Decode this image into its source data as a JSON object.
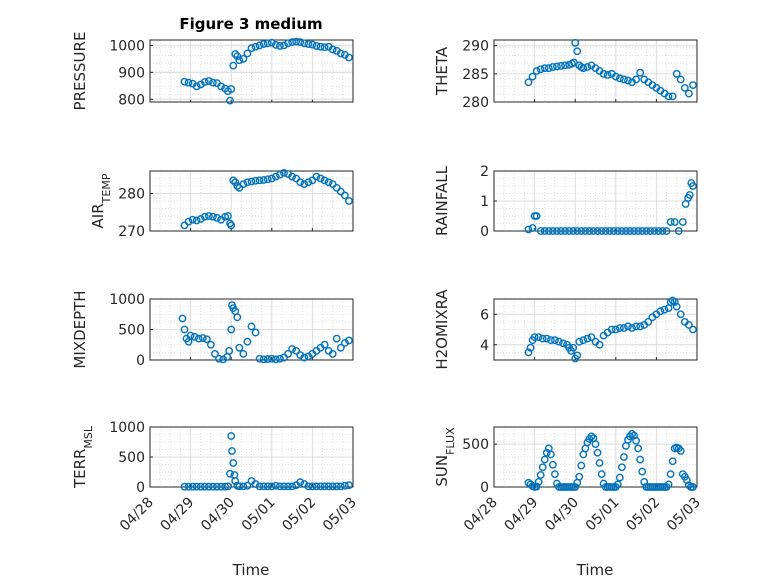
{
  "figure": {
    "title": "Figure 3 medium",
    "xlabel": "Time",
    "marker_color": "#0072BD"
  },
  "chart_data": [
    {
      "type": "scatter",
      "ylabel": "PRESSURE",
      "ylim": [
        790,
        1020
      ],
      "yticks": [
        800,
        900,
        1000
      ],
      "xlim": [
        0,
        5
      ],
      "xticks": [
        "04/28",
        "04/29",
        "04/30",
        "05/01",
        "05/02",
        "05/03"
      ],
      "xtick_labels_visible": false,
      "grid": true,
      "minor_grid": true,
      "x": [
        0.85,
        0.95,
        1.05,
        1.15,
        1.25,
        1.35,
        1.45,
        1.55,
        1.65,
        1.75,
        1.85,
        1.92,
        1.97,
        2.0,
        2.05,
        2.1,
        2.15,
        2.2,
        2.3,
        2.4,
        2.5,
        2.6,
        2.7,
        2.8,
        2.9,
        3.0,
        3.1,
        3.2,
        3.3,
        3.4,
        3.5,
        3.6,
        3.7,
        3.8,
        3.9,
        4.0,
        4.1,
        4.2,
        4.3,
        4.4,
        4.5,
        4.6,
        4.7,
        4.8,
        4.9
      ],
      "y": [
        865,
        862,
        858,
        848,
        855,
        864,
        868,
        862,
        860,
        848,
        840,
        830,
        795,
        838,
        925,
        968,
        960,
        945,
        950,
        970,
        990,
        995,
        1000,
        1005,
        1008,
        1010,
        1002,
        998,
        1000,
        1008,
        1012,
        1014,
        1012,
        1008,
        1005,
        1003,
        998,
        995,
        993,
        995,
        985,
        980,
        970,
        965,
        955
      ]
    },
    {
      "type": "scatter",
      "ylabel": "THETA",
      "ylim": [
        280,
        291
      ],
      "yticks": [
        280,
        285,
        290
      ],
      "xlim": [
        0,
        5
      ],
      "xticks": [
        "04/28",
        "04/29",
        "04/30",
        "05/01",
        "05/02",
        "05/03"
      ],
      "xtick_labels_visible": false,
      "grid": true,
      "minor_grid": true,
      "x": [
        0.85,
        0.95,
        1.05,
        1.15,
        1.25,
        1.35,
        1.45,
        1.55,
        1.65,
        1.75,
        1.85,
        1.92,
        1.97,
        2.0,
        2.05,
        2.1,
        2.15,
        2.2,
        2.3,
        2.4,
        2.5,
        2.6,
        2.7,
        2.8,
        2.9,
        3.0,
        3.1,
        3.2,
        3.3,
        3.4,
        3.5,
        3.6,
        3.7,
        3.8,
        3.9,
        4.0,
        4.1,
        4.2,
        4.3,
        4.4,
        4.5,
        4.6,
        4.7,
        4.8,
        4.9
      ],
      "y": [
        283.5,
        284.5,
        285.5,
        285.8,
        286.0,
        286.0,
        286.2,
        286.3,
        286.4,
        286.5,
        286.6,
        286.8,
        287.0,
        290.5,
        289.0,
        286.5,
        286.2,
        286.0,
        286.2,
        286.5,
        286.0,
        285.5,
        285.0,
        284.8,
        285.0,
        284.5,
        284.2,
        284.0,
        283.8,
        283.5,
        284.0,
        285.2,
        284.0,
        283.5,
        283.0,
        282.5,
        282.0,
        281.5,
        281.0,
        281.0,
        285.0,
        284.0,
        282.5,
        281.5,
        283.0
      ]
    },
    {
      "type": "scatter",
      "ylabel": "AIR_TEMP",
      "ylim": [
        270,
        286
      ],
      "yticks": [
        270,
        280
      ],
      "xlim": [
        0,
        5
      ],
      "xticks": [
        "04/28",
        "04/29",
        "04/30",
        "05/01",
        "05/02",
        "05/03"
      ],
      "xtick_labels_visible": false,
      "grid": true,
      "minor_grid": true,
      "x": [
        0.85,
        0.95,
        1.05,
        1.15,
        1.25,
        1.35,
        1.45,
        1.55,
        1.65,
        1.75,
        1.85,
        1.92,
        1.97,
        2.0,
        2.05,
        2.1,
        2.15,
        2.2,
        2.3,
        2.4,
        2.5,
        2.6,
        2.7,
        2.8,
        2.9,
        3.0,
        3.1,
        3.2,
        3.3,
        3.4,
        3.5,
        3.6,
        3.7,
        3.8,
        3.9,
        4.0,
        4.1,
        4.2,
        4.3,
        4.4,
        4.5,
        4.6,
        4.7,
        4.8,
        4.9
      ],
      "y": [
        271.5,
        272.5,
        273.0,
        272.8,
        273.2,
        273.8,
        274.0,
        273.8,
        273.5,
        273.0,
        273.8,
        274.0,
        272.0,
        271.5,
        283.5,
        283.0,
        282.0,
        281.5,
        282.5,
        283.0,
        283.2,
        283.4,
        283.5,
        283.6,
        283.8,
        284.0,
        284.5,
        285.0,
        285.5,
        285.2,
        284.5,
        284.0,
        283.0,
        282.5,
        283.0,
        283.5,
        284.5,
        284.0,
        283.5,
        283.0,
        282.5,
        281.5,
        280.5,
        279.5,
        278.0
      ]
    },
    {
      "type": "scatter",
      "ylabel": "RAINFALL",
      "ylim": [
        0,
        2
      ],
      "yticks": [
        0,
        1,
        2
      ],
      "xlim": [
        0,
        5
      ],
      "xticks": [
        "04/28",
        "04/29",
        "04/30",
        "05/01",
        "05/02",
        "05/03"
      ],
      "xtick_labels_visible": false,
      "grid": true,
      "minor_grid": true,
      "x": [
        0.85,
        0.95,
        1.0,
        1.05,
        1.15,
        1.25,
        1.35,
        1.45,
        1.55,
        1.65,
        1.75,
        1.85,
        1.95,
        2.05,
        2.15,
        2.25,
        2.35,
        2.45,
        2.55,
        2.65,
        2.75,
        2.85,
        2.95,
        3.05,
        3.15,
        3.25,
        3.35,
        3.45,
        3.55,
        3.65,
        3.75,
        3.85,
        3.95,
        4.05,
        4.15,
        4.25,
        4.35,
        4.45,
        4.55,
        4.65,
        4.72,
        4.78,
        4.82,
        4.86,
        4.9
      ],
      "y": [
        0.05,
        0.1,
        0.5,
        0.5,
        0,
        0,
        0,
        0,
        0,
        0,
        0,
        0,
        0,
        0,
        0,
        0,
        0,
        0,
        0,
        0,
        0,
        0,
        0,
        0,
        0,
        0,
        0,
        0,
        0,
        0,
        0,
        0,
        0,
        0,
        0,
        0,
        0.3,
        0.3,
        0,
        0.3,
        0.9,
        1.1,
        1.2,
        1.6,
        1.5
      ]
    },
    {
      "type": "scatter",
      "ylabel": "MIXDEPTH",
      "ylim": [
        0,
        1000
      ],
      "yticks": [
        0,
        500,
        1000
      ],
      "xlim": [
        0,
        5
      ],
      "xticks": [
        "04/28",
        "04/29",
        "04/30",
        "05/01",
        "05/02",
        "05/03"
      ],
      "xtick_labels_visible": false,
      "grid": true,
      "minor_grid": true,
      "x": [
        0.8,
        0.85,
        0.9,
        0.95,
        1.0,
        1.1,
        1.2,
        1.3,
        1.4,
        1.5,
        1.6,
        1.7,
        1.8,
        1.9,
        1.95,
        2.0,
        2.02,
        2.05,
        2.1,
        2.15,
        2.2,
        2.3,
        2.4,
        2.5,
        2.6,
        2.7,
        2.8,
        2.9,
        3.0,
        3.1,
        3.2,
        3.3,
        3.4,
        3.5,
        3.6,
        3.7,
        3.8,
        3.9,
        4.0,
        4.1,
        4.2,
        4.3,
        4.4,
        4.5,
        4.6,
        4.7,
        4.8,
        4.9
      ],
      "y": [
        680,
        500,
        350,
        300,
        400,
        380,
        350,
        360,
        340,
        250,
        100,
        20,
        10,
        50,
        150,
        500,
        900,
        850,
        800,
        700,
        200,
        100,
        300,
        550,
        450,
        20,
        10,
        15,
        20,
        10,
        20,
        40,
        100,
        180,
        150,
        80,
        40,
        60,
        100,
        150,
        200,
        250,
        150,
        100,
        350,
        200,
        280,
        320
      ]
    },
    {
      "type": "scatter",
      "ylabel": "H2OMIXRA",
      "ylim": [
        3,
        7
      ],
      "yticks": [
        4,
        6
      ],
      "xlim": [
        0,
        5
      ],
      "xticks": [
        "04/28",
        "04/29",
        "04/30",
        "05/01",
        "05/02",
        "05/03"
      ],
      "xtick_labels_visible": false,
      "grid": true,
      "minor_grid": true,
      "x": [
        0.85,
        0.9,
        0.95,
        1.0,
        1.1,
        1.2,
        1.3,
        1.4,
        1.5,
        1.6,
        1.7,
        1.8,
        1.85,
        1.9,
        1.95,
        2.0,
        2.05,
        2.1,
        2.2,
        2.3,
        2.4,
        2.5,
        2.6,
        2.7,
        2.8,
        2.9,
        3.0,
        3.1,
        3.2,
        3.3,
        3.4,
        3.5,
        3.6,
        3.7,
        3.8,
        3.9,
        4.0,
        4.1,
        4.2,
        4.3,
        4.35,
        4.4,
        4.45,
        4.5,
        4.6,
        4.7,
        4.8,
        4.9
      ],
      "y": [
        3.5,
        3.8,
        4.3,
        4.5,
        4.5,
        4.4,
        4.4,
        4.3,
        4.3,
        4.2,
        4.1,
        4.0,
        3.8,
        3.6,
        3.8,
        3.1,
        3.3,
        4.2,
        4.3,
        4.4,
        4.5,
        4.2,
        4.0,
        4.6,
        4.8,
        5.0,
        5.0,
        5.1,
        5.1,
        5.2,
        5.1,
        5.2,
        5.2,
        5.3,
        5.5,
        5.8,
        6.0,
        6.2,
        6.3,
        6.4,
        6.8,
        6.9,
        6.8,
        6.5,
        6.0,
        5.5,
        5.3,
        5.0
      ]
    },
    {
      "type": "scatter",
      "ylabel": "TERR_MSL",
      "ylim": [
        0,
        1000
      ],
      "yticks": [
        0,
        500,
        1000
      ],
      "xlim": [
        0,
        5
      ],
      "xticks": [
        "04/28",
        "04/29",
        "04/30",
        "05/01",
        "05/02",
        "05/03"
      ],
      "xtick_labels_visible": true,
      "grid": true,
      "minor_grid": true,
      "x": [
        0.85,
        0.95,
        1.05,
        1.15,
        1.25,
        1.35,
        1.45,
        1.55,
        1.65,
        1.75,
        1.85,
        1.92,
        1.97,
        2.0,
        2.02,
        2.05,
        2.08,
        2.1,
        2.15,
        2.2,
        2.3,
        2.4,
        2.5,
        2.6,
        2.7,
        2.8,
        2.9,
        3.0,
        3.1,
        3.2,
        3.3,
        3.4,
        3.5,
        3.6,
        3.7,
        3.8,
        3.9,
        4.0,
        4.1,
        4.2,
        4.3,
        4.4,
        4.5,
        4.6,
        4.7,
        4.8,
        4.9
      ],
      "y": [
        5,
        5,
        5,
        5,
        5,
        5,
        5,
        5,
        5,
        5,
        5,
        10,
        220,
        850,
        600,
        400,
        200,
        100,
        20,
        10,
        10,
        20,
        100,
        50,
        10,
        10,
        10,
        10,
        20,
        10,
        10,
        10,
        10,
        30,
        80,
        50,
        10,
        10,
        10,
        10,
        10,
        10,
        10,
        10,
        10,
        20,
        30
      ]
    },
    {
      "type": "scatter",
      "ylabel": "SUN_FLUX",
      "ylim": [
        0,
        700
      ],
      "yticks": [
        0,
        500
      ],
      "xlim": [
        0,
        5
      ],
      "xticks": [
        "04/28",
        "04/29",
        "04/30",
        "05/01",
        "05/02",
        "05/03"
      ],
      "xtick_labels_visible": true,
      "grid": true,
      "minor_grid": true,
      "x": [
        0.85,
        0.9,
        0.95,
        1.0,
        1.05,
        1.1,
        1.15,
        1.2,
        1.25,
        1.3,
        1.35,
        1.4,
        1.45,
        1.5,
        1.55,
        1.6,
        1.65,
        1.7,
        1.75,
        1.8,
        1.85,
        1.9,
        1.95,
        2.0,
        2.05,
        2.1,
        2.15,
        2.2,
        2.25,
        2.3,
        2.35,
        2.4,
        2.45,
        2.5,
        2.55,
        2.6,
        2.65,
        2.7,
        2.75,
        2.8,
        2.85,
        2.9,
        2.95,
        3.0,
        3.05,
        3.1,
        3.15,
        3.2,
        3.25,
        3.3,
        3.35,
        3.4,
        3.45,
        3.5,
        3.55,
        3.6,
        3.65,
        3.7,
        3.75,
        3.8,
        3.85,
        3.9,
        3.95,
        4.0,
        4.05,
        4.1,
        4.15,
        4.2,
        4.25,
        4.3,
        4.35,
        4.4,
        4.45,
        4.5,
        4.55,
        4.6,
        4.65,
        4.7,
        4.75,
        4.8,
        4.85,
        4.9
      ],
      "y": [
        50,
        30,
        10,
        0,
        5,
        60,
        140,
        230,
        320,
        400,
        450,
        380,
        260,
        150,
        40,
        0,
        0,
        0,
        0,
        0,
        0,
        0,
        0,
        0,
        50,
        120,
        250,
        380,
        450,
        520,
        560,
        590,
        570,
        500,
        400,
        280,
        150,
        40,
        0,
        0,
        0,
        0,
        0,
        0,
        30,
        110,
        230,
        350,
        480,
        550,
        590,
        620,
        600,
        540,
        450,
        320,
        180,
        60,
        0,
        0,
        0,
        0,
        0,
        0,
        0,
        0,
        0,
        0,
        0,
        30,
        150,
        300,
        450,
        460,
        450,
        420,
        150,
        120,
        80,
        20,
        0,
        0
      ]
    }
  ]
}
